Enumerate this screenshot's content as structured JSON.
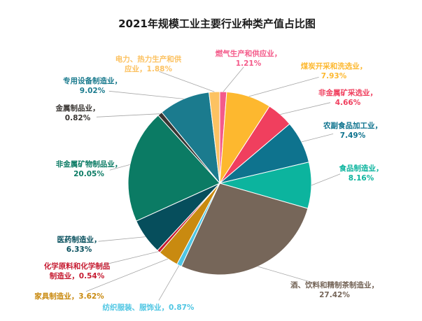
{
  "chart_data": {
    "type": "pie",
    "title": "2021年规模工业主要行业种类产值占比图",
    "unit": "%",
    "slices": [
      {
        "name": "燃气生产和供应业",
        "value": 1.21,
        "color": "#f45b8a",
        "label_lines": [
          "燃气生产和供应业，",
          "1.21%"
        ]
      },
      {
        "name": "煤炭开采和洗选业",
        "value": 7.93,
        "color": "#fdb82f",
        "label_lines": [
          "煤炭开采和洗选业，",
          "7.93%"
        ]
      },
      {
        "name": "非金属矿采选业",
        "value": 4.66,
        "color": "#f03f5e",
        "label_lines": [
          "非金属矿采选业，",
          "4.66%"
        ]
      },
      {
        "name": "农副食品加工业",
        "value": 7.49,
        "color": "#0e738e",
        "label_lines": [
          "农副食品加工业，",
          "7.49%"
        ]
      },
      {
        "name": "食品制造业",
        "value": 8.16,
        "color": "#0cb49e",
        "label_lines": [
          "食品制造业，",
          "8.16%"
        ]
      },
      {
        "name": "酒、饮料和精制茶制造业",
        "value": 27.42,
        "color": "#766659",
        "label_lines": [
          "酒、饮料和精制茶制造业，",
          "27.42%"
        ]
      },
      {
        "name": "纺织服装、服饰业",
        "value": 0.87,
        "color": "#4fc6e3",
        "label_lines": [
          "纺织服装、服饰业，0.87%"
        ]
      },
      {
        "name": "家具制造业",
        "value": 3.62,
        "color": "#c98a10",
        "label_lines": [
          "家具制造业，3.62%"
        ]
      },
      {
        "name": "化学原料和化学制品制造业",
        "value": 0.54,
        "color": "#c61c32",
        "label_lines": [
          "化学原料和化学制品",
          "制造业，0.54%"
        ]
      },
      {
        "name": "医药制造业",
        "value": 6.33,
        "color": "#064e5c",
        "label_lines": [
          "医药制造业，",
          "6.33%"
        ]
      },
      {
        "name": "非金属矿物制品业",
        "value": 20.05,
        "color": "#0b7b64",
        "label_lines": [
          "非金属矿物制品业，",
          "20.05%"
        ]
      },
      {
        "name": "金属制品业",
        "value": 0.82,
        "color": "#3a3633",
        "label_lines": [
          "金属制品业，",
          "0.82%"
        ]
      },
      {
        "name": "专用设备制造业",
        "value": 9.02,
        "color": "#1b7b8e",
        "label_lines": [
          "专用设备制造业，",
          "9.02%"
        ]
      },
      {
        "name": "电力、热力生产和供应业",
        "value": 1.88,
        "color": "#fcc262",
        "label_lines": [
          "电力、热力生产和供",
          "应业，1.88%"
        ]
      }
    ]
  }
}
